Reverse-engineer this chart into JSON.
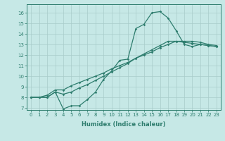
{
  "xlabel": "Humidex (Indice chaleur)",
  "bg_color": "#c6e8e6",
  "line_color": "#2e7d6e",
  "grid_color": "#a8ccca",
  "xlim": [
    -0.5,
    23.5
  ],
  "ylim": [
    6.8,
    16.8
  ],
  "xticks": [
    0,
    1,
    2,
    3,
    4,
    5,
    6,
    7,
    8,
    9,
    10,
    11,
    12,
    13,
    14,
    15,
    16,
    17,
    18,
    19,
    20,
    21,
    22,
    23
  ],
  "yticks": [
    7,
    8,
    9,
    10,
    11,
    12,
    13,
    14,
    15,
    16
  ],
  "line1_x": [
    0,
    1,
    2,
    3,
    4,
    5,
    6,
    7,
    8,
    9,
    10,
    11,
    12,
    13,
    14,
    15,
    16,
    17,
    18,
    19,
    20,
    21,
    22,
    23
  ],
  "line1_y": [
    8.0,
    8.0,
    8.0,
    8.5,
    6.9,
    7.2,
    7.2,
    7.8,
    8.5,
    9.7,
    10.5,
    11.5,
    11.6,
    14.5,
    14.9,
    16.0,
    16.1,
    15.5,
    14.3,
    13.0,
    12.8,
    13.0,
    12.9,
    12.8
  ],
  "line2_x": [
    0,
    1,
    2,
    3,
    4,
    5,
    6,
    7,
    8,
    9,
    10,
    11,
    12,
    13,
    14,
    15,
    16,
    17,
    18,
    19,
    20,
    21,
    22,
    23
  ],
  "line2_y": [
    8.0,
    8.0,
    8.2,
    8.7,
    8.7,
    9.1,
    9.4,
    9.7,
    10.0,
    10.3,
    10.7,
    11.0,
    11.3,
    11.7,
    12.0,
    12.3,
    12.7,
    13.0,
    13.3,
    13.3,
    13.3,
    13.2,
    13.0,
    12.9
  ],
  "line3_x": [
    0,
    1,
    2,
    3,
    4,
    5,
    6,
    7,
    8,
    9,
    10,
    11,
    12,
    13,
    14,
    15,
    16,
    17,
    18,
    19,
    20,
    21,
    22,
    23
  ],
  "line3_y": [
    8.0,
    8.0,
    8.0,
    8.5,
    8.3,
    8.5,
    8.9,
    9.2,
    9.6,
    10.0,
    10.4,
    10.8,
    11.2,
    11.7,
    12.1,
    12.5,
    12.9,
    13.3,
    13.3,
    13.2,
    13.1,
    13.0,
    12.9,
    12.8
  ],
  "tick_fontsize": 5,
  "xlabel_fontsize": 6
}
